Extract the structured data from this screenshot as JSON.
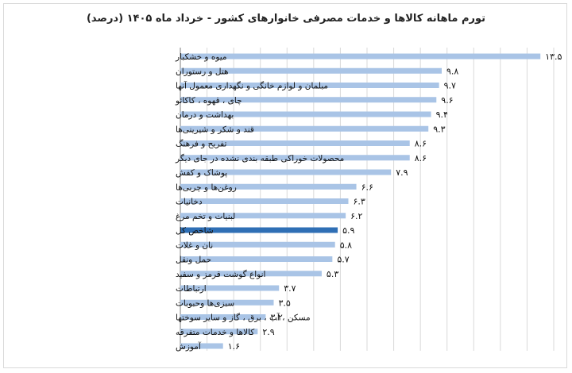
{
  "chart_data": {
    "type": "bar",
    "orientation": "horizontal",
    "title": "تورم ماهانه کالاها و خدمات مصرفی خانوارهای کشور - خرداد ماه ۱۴۰۵ (درصد)",
    "xlim": [
      0,
      14
    ],
    "grid": true,
    "categories": [
      "میوه و خشکبار",
      "هتل و رستوران",
      "مبلمان و لوازم خانگی و نگهداری معمول آنها",
      "چای ، قهوه ، کاکائو",
      "بهداشت و درمان",
      "قند و شکر و شیرینی‌ها",
      "تفریح و فرهنگ",
      "محصولات خوراکی طبقه بندی نشده در جای دیگر",
      "پوشاک و کفش",
      "روغن‌ها و چربی‌ها",
      "دخانیات",
      "لبنیات و تخم مرغ",
      "شاخص کل",
      "نان و غلات",
      "حمل ونقل",
      "انواع گوشت قرمز و سفید",
      "ارتباطات",
      "سبزی‌ها وحبوبات",
      "مسکن ، آب ، برق ، گاز و سایر سوختها",
      "کالاها و خدمات متفرقه",
      "آموزش"
    ],
    "values": [
      13.5,
      9.8,
      9.7,
      9.6,
      9.4,
      9.3,
      8.6,
      8.6,
      7.9,
      6.6,
      6.3,
      6.2,
      5.9,
      5.8,
      5.7,
      5.3,
      3.7,
      3.5,
      3.2,
      2.9,
      1.6
    ],
    "value_labels": [
      "۱۳.۵",
      "۹.۸",
      "۹.۷",
      "۹.۶",
      "۹.۴",
      "۹.۳",
      "۸.۶",
      "۸.۶",
      "۷.۹",
      "۶.۶",
      "۶.۳",
      "۶.۲",
      "۵.۹",
      "۵.۸",
      "۵.۷",
      "۵.۳",
      "۳.۷",
      "۳.۵",
      "۳.۲",
      "۲.۹",
      "۱.۶"
    ],
    "highlight_category": "شاخص کل",
    "colors": {
      "bar": "#a9c4e6",
      "highlight": "#2f6fb5",
      "grid": "#d9d9d9",
      "axis": "#7f7f7f"
    }
  }
}
